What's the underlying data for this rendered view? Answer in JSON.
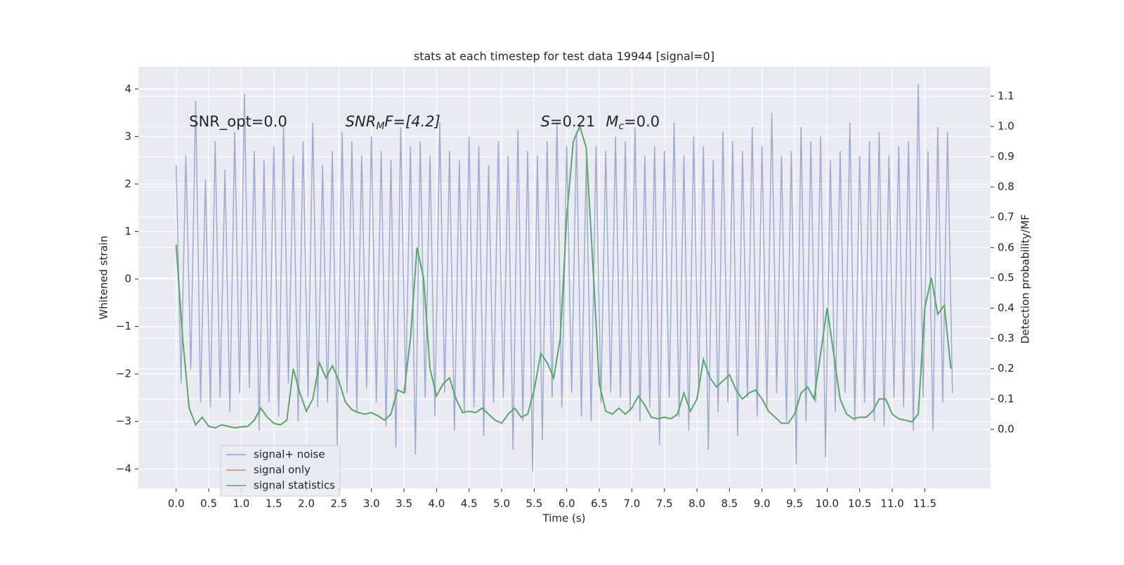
{
  "chart_data": {
    "type": "line",
    "title": "stats at each timestep for test data 19944 [signal=0]",
    "xlabel": "Time (s)",
    "ylabel": "Whitened strain",
    "y2label": "Detection probability/MF",
    "annotations": [
      {
        "base": "SNR_opt=0.0",
        "x": 0.2,
        "y": 3.3
      },
      {
        "base": "SNR",
        "sub": "M",
        "rest": "F=[4.2]",
        "x": 2.6,
        "y": 3.3
      },
      {
        "base": "S",
        "rest": "=0.21",
        "x": 5.6,
        "y": 3.3
      },
      {
        "base": "M",
        "sub": "c",
        "rest": "=0.0",
        "x": 6.6,
        "y": 3.3
      }
    ],
    "xlim": [
      -0.58,
      12.51
    ],
    "ylim": [
      -4.41,
      4.47
    ],
    "y2lim": [
      -0.195,
      1.197
    ],
    "xticks": [
      {
        "value": 0,
        "label": "0.0"
      },
      0.5,
      {
        "value": 1,
        "label": "1.0"
      },
      1.5,
      {
        "value": 2,
        "label": "2.0"
      },
      2.5,
      {
        "value": 3,
        "label": "3.0"
      },
      3.5,
      {
        "value": 4,
        "label": "4.0"
      },
      4.5,
      {
        "value": 5,
        "label": "5.0"
      },
      5.5,
      {
        "value": 6,
        "label": "6.0"
      },
      6.5,
      {
        "value": 7,
        "label": "7.0"
      },
      7.5,
      {
        "value": 8,
        "label": "8.0"
      },
      8.5,
      {
        "value": 9,
        "label": "9.0"
      },
      9.5,
      {
        "value": 10,
        "label": "10.0"
      },
      10.5,
      {
        "value": 11,
        "label": "11.0"
      },
      11.5
    ],
    "yticks": [
      {
        "value": -4,
        "label": "−4"
      },
      {
        "value": -3,
        "label": "−3"
      },
      {
        "value": -2,
        "label": "−2"
      },
      {
        "value": -1,
        "label": "−1"
      },
      0,
      1,
      2,
      3,
      4
    ],
    "y2ticks": [
      {
        "value": 0,
        "label": "0.0"
      },
      0.1,
      0.2,
      0.3,
      0.4,
      0.5,
      0.6,
      0.7,
      0.8,
      0.9,
      {
        "value": 1,
        "label": "1.0"
      },
      1.1
    ],
    "grid": true,
    "legend_loc": "lower left",
    "series": [
      {
        "name": "signal+ noise",
        "color": "#8da0cb",
        "x": [
          0,
          0.075,
          0.15,
          0.225,
          0.3,
          0.375,
          0.45,
          0.525,
          0.6,
          0.675,
          0.75,
          0.825,
          0.9,
          0.975,
          1.05,
          1.125,
          1.2,
          1.275,
          1.35,
          1.425,
          1.5,
          1.575,
          1.65,
          1.725,
          1.8,
          1.875,
          1.95,
          2.025,
          2.1,
          2.175,
          2.25,
          2.325,
          2.4,
          2.475,
          2.55,
          2.625,
          2.7,
          2.775,
          2.85,
          2.925,
          3,
          3.075,
          3.15,
          3.225,
          3.3,
          3.375,
          3.45,
          3.525,
          3.6,
          3.675,
          3.75,
          3.825,
          3.9,
          3.975,
          4.05,
          4.125,
          4.2,
          4.275,
          4.35,
          4.425,
          4.5,
          4.575,
          4.65,
          4.725,
          4.8,
          4.875,
          4.95,
          5.025,
          5.1,
          5.175,
          5.25,
          5.325,
          5.4,
          5.475,
          5.55,
          5.625,
          5.7,
          5.775,
          5.85,
          5.925,
          6,
          6.075,
          6.15,
          6.225,
          6.3,
          6.375,
          6.45,
          6.525,
          6.6,
          6.675,
          6.75,
          6.825,
          6.9,
          6.975,
          7.05,
          7.125,
          7.2,
          7.275,
          7.35,
          7.425,
          7.5,
          7.575,
          7.65,
          7.725,
          7.8,
          7.875,
          7.95,
          8.025,
          8.1,
          8.175,
          8.25,
          8.325,
          8.4,
          8.475,
          8.55,
          8.625,
          8.7,
          8.775,
          8.85,
          8.925,
          9,
          9.075,
          9.15,
          9.225,
          9.3,
          9.375,
          9.45,
          9.525,
          9.6,
          9.675,
          9.75,
          9.825,
          9.9,
          9.975,
          10.05,
          10.125,
          10.2,
          10.275,
          10.35,
          10.425,
          10.5,
          10.575,
          10.65,
          10.725,
          10.8,
          10.875,
          10.95,
          11.025,
          11.1,
          11.175,
          11.25,
          11.325,
          11.4,
          11.475,
          11.55,
          11.625,
          11.7,
          11.775,
          11.85,
          11.925
        ],
        "values": [
          2.4,
          -2.2,
          2.6,
          -1.9,
          3.75,
          -2.6,
          2.1,
          -2.7,
          2.9,
          -2.5,
          2.3,
          -2.8,
          3.1,
          -2.4,
          3.9,
          -2.3,
          2.7,
          -3.2,
          2.5,
          -2.6,
          2.8,
          -2.9,
          3.2,
          -2.2,
          2.6,
          -3.0,
          2.9,
          -2.5,
          3.3,
          -2.7,
          2.4,
          -2.6,
          2.7,
          -3.5,
          3.1,
          -2.4,
          2.9,
          -2.8,
          2.6,
          -2.3,
          3.0,
          -2.6,
          2.7,
          -3.1,
          2.5,
          -3.55,
          3.2,
          -2.4,
          2.8,
          -3.7,
          2.9,
          -2.5,
          2.6,
          -2.9,
          3.3,
          -2.4,
          2.7,
          -3.2,
          2.5,
          -2.8,
          3.0,
          -2.7,
          2.8,
          -3.3,
          2.4,
          -2.6,
          2.9,
          -2.5,
          2.6,
          -3.6,
          3.15,
          -3.0,
          2.7,
          -4.05,
          2.6,
          -3.4,
          2.9,
          -2.5,
          3.3,
          -2.7,
          2.8,
          -2.4,
          3.1,
          -2.9,
          2.5,
          -3.0,
          2.8,
          -2.6,
          2.7,
          -2.4,
          3.0,
          -2.5,
          2.9,
          -2.8,
          3.2,
          -3.0,
          2.6,
          -2.7,
          2.8,
          -3.5,
          2.7,
          -2.5,
          3.3,
          -2.9,
          2.6,
          -3.2,
          3.0,
          -2.4,
          2.8,
          -3.6,
          2.5,
          -2.8,
          3.1,
          -2.6,
          2.9,
          -3.3,
          2.7,
          -2.5,
          3.2,
          -2.9,
          2.8,
          -2.7,
          3.5,
          -2.4,
          2.6,
          -3.0,
          2.7,
          -3.9,
          3.2,
          -3.0,
          2.9,
          -2.6,
          3.0,
          -3.75,
          2.5,
          -2.8,
          2.7,
          -2.4,
          3.3,
          -3.0,
          2.6,
          -2.6,
          2.9,
          -3.0,
          3.1,
          -3.1,
          2.6,
          -2.5,
          2.8,
          -2.7,
          2.9,
          -3.2,
          4.1,
          -2.5,
          2.7,
          -3.2,
          3.2,
          -2.6,
          3.1,
          -2.4
        ]
      },
      {
        "name": "signal only",
        "color": "#dd8452",
        "x": [],
        "values": []
      },
      {
        "name": "signal statistics",
        "color": "#55a868",
        "axis": "y2",
        "x": [
          0,
          0.1,
          0.2,
          0.3,
          0.4,
          0.5,
          0.6,
          0.7,
          0.8,
          0.9,
          1,
          1.1,
          1.2,
          1.3,
          1.4,
          1.5,
          1.6,
          1.7,
          1.8,
          1.9,
          2,
          2.1,
          2.2,
          2.3,
          2.4,
          2.5,
          2.6,
          2.7,
          2.8,
          2.9,
          3,
          3.1,
          3.2,
          3.3,
          3.4,
          3.5,
          3.6,
          3.7,
          3.8,
          3.9,
          4,
          4.1,
          4.2,
          4.3,
          4.4,
          4.5,
          4.6,
          4.7,
          4.8,
          4.9,
          5,
          5.1,
          5.2,
          5.3,
          5.4,
          5.5,
          5.6,
          5.7,
          5.8,
          5.9,
          6,
          6.1,
          6.2,
          6.3,
          6.4,
          6.5,
          6.6,
          6.7,
          6.8,
          6.9,
          7,
          7.1,
          7.2,
          7.3,
          7.4,
          7.5,
          7.6,
          7.7,
          7.8,
          7.9,
          8,
          8.1,
          8.2,
          8.3,
          8.4,
          8.5,
          8.6,
          8.7,
          8.8,
          8.9,
          9,
          9.1,
          9.2,
          9.3,
          9.4,
          9.5,
          9.6,
          9.7,
          9.8,
          9.9,
          10,
          10.1,
          10.2,
          10.3,
          10.4,
          10.5,
          10.6,
          10.7,
          10.8,
          10.9,
          11,
          11.1,
          11.2,
          11.3,
          11.4,
          11.5,
          11.6,
          11.7,
          11.8,
          11.9
        ],
        "values": [
          0.61,
          0.3,
          0.07,
          0.015,
          0.04,
          0.01,
          0.005,
          0.015,
          0.01,
          0.005,
          0.008,
          0.01,
          0.03,
          0.07,
          0.04,
          0.02,
          0.015,
          0.03,
          0.2,
          0.12,
          0.06,
          0.1,
          0.22,
          0.17,
          0.21,
          0.16,
          0.09,
          0.065,
          0.055,
          0.05,
          0.055,
          0.045,
          0.03,
          0.05,
          0.13,
          0.12,
          0.3,
          0.6,
          0.5,
          0.2,
          0.11,
          0.15,
          0.17,
          0.1,
          0.055,
          0.06,
          0.055,
          0.07,
          0.05,
          0.03,
          0.02,
          0.05,
          0.07,
          0.04,
          0.05,
          0.13,
          0.25,
          0.22,
          0.17,
          0.3,
          0.7,
          0.95,
          1.0,
          0.93,
          0.55,
          0.15,
          0.06,
          0.05,
          0.07,
          0.05,
          0.07,
          0.11,
          0.08,
          0.04,
          0.035,
          0.04,
          0.035,
          0.05,
          0.12,
          0.06,
          0.1,
          0.23,
          0.17,
          0.14,
          0.16,
          0.18,
          0.13,
          0.1,
          0.12,
          0.13,
          0.1,
          0.06,
          0.04,
          0.02,
          0.02,
          0.05,
          0.12,
          0.14,
          0.1,
          0.25,
          0.4,
          0.25,
          0.1,
          0.05,
          0.035,
          0.04,
          0.04,
          0.06,
          0.1,
          0.1,
          0.05,
          0.035,
          0.03,
          0.025,
          0.05,
          0.4,
          0.5,
          0.38,
          0.41,
          0.2
        ]
      }
    ]
  }
}
